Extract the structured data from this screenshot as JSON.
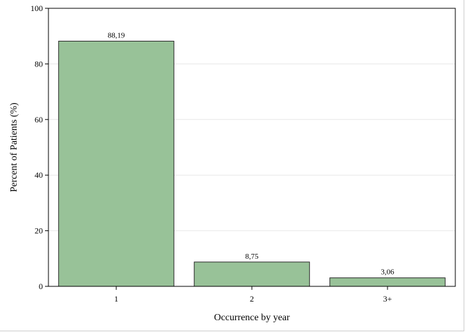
{
  "chart_data": {
    "type": "bar",
    "categories": [
      "1",
      "2",
      "3+"
    ],
    "values": [
      88.19,
      8.75,
      3.06
    ],
    "value_labels": [
      "88,19",
      "8,75",
      "3,06"
    ],
    "xlabel": "Occurrence by year",
    "ylabel": "Percent of Patients (%)",
    "ylim": [
      0,
      100
    ],
    "yticks": [
      0,
      20,
      40,
      60,
      80,
      100
    ],
    "ytick_labels": [
      "0",
      "20",
      "40",
      "60",
      "80",
      "100"
    ],
    "grid": true,
    "bar_color": "#98c298",
    "bar_edge_color": "#2b2b2b",
    "grid_color": "#e8e8e8"
  }
}
